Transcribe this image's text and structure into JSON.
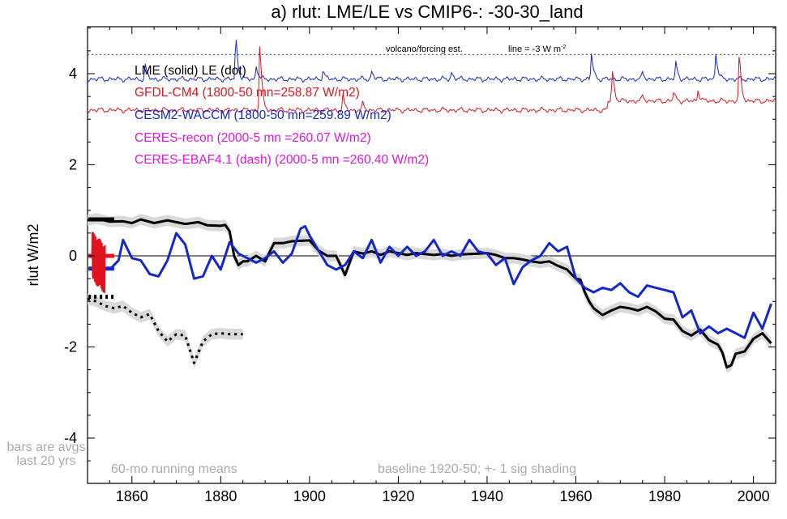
{
  "chart_data": {
    "type": "line",
    "title": "a) rlut: LME/LE vs CMIP6-: -30-30_land",
    "ylabel": "rlut W/m2",
    "xlabel": "",
    "xlim": [
      1850,
      2005
    ],
    "ylim": [
      -5,
      5.3
    ],
    "x_ticks": [
      1860,
      1880,
      1900,
      1920,
      1940,
      1960,
      1980,
      2000
    ],
    "y_ticks": [
      {
        "value": 4,
        "label": "4"
      },
      {
        "value": 2,
        "label": "2"
      },
      {
        "value": 0,
        "label": "0"
      },
      {
        "value": -2,
        "label": "-2"
      },
      {
        "value": -4,
        "label": "-4"
      }
    ],
    "zero_line": 0,
    "volcano_line_y": 4.42,
    "legend": [
      {
        "text": "LME (solid)   LE (dot)",
        "color": "#000000"
      },
      {
        "text": "GFDL-CM4 (1800-50 mn=258.87 W/m2)",
        "color": "#e0141e"
      },
      {
        "text": "CESM2-WACCM (1800-50 mn=259.89 W/m2)",
        "color": "#1428c8"
      },
      {
        "text": "CERES-recon (2000-5 mn =260.07 W/m2)",
        "color": "#e014e0"
      },
      {
        "text": "CERES-EBAF4.1 (dash) (2000-5 mn =260.40 W/m2)",
        "color": "#e014e0"
      }
    ],
    "annotations": {
      "volcano": "volcano/forcing est.",
      "line_note": "line = -3 W m",
      "line_note_sup": "-2",
      "bars_note": [
        "bars are avgs",
        "last 20 yrs"
      ],
      "running": "60-mo running means",
      "baseline": "baseline 1920-50; +- 1 sig shading"
    },
    "series": [
      {
        "name": "LME (solid)",
        "style": "solid",
        "color": "#000000",
        "shade_sigma": 0.12,
        "x": [
          1850,
          1852,
          1855,
          1858,
          1860,
          1862,
          1865,
          1868,
          1870,
          1872,
          1875,
          1877,
          1880,
          1881,
          1882,
          1883,
          1884,
          1885,
          1886,
          1888,
          1890,
          1892,
          1894,
          1896,
          1898,
          1900,
          1902,
          1904,
          1906,
          1908,
          1910,
          1912,
          1914,
          1916,
          1918,
          1920,
          1922,
          1924,
          1926,
          1928,
          1930,
          1932,
          1934,
          1936,
          1938,
          1940,
          1942,
          1944,
          1946,
          1948,
          1950,
          1952,
          1954,
          1956,
          1958,
          1960,
          1961,
          1962,
          1963,
          1964,
          1966,
          1968,
          1970,
          1972,
          1974,
          1976,
          1978,
          1980,
          1982,
          1984,
          1986,
          1988,
          1990,
          1992,
          1993,
          1994,
          1995,
          1996,
          1998,
          2000,
          2002,
          2004
        ],
        "y": [
          0.78,
          0.82,
          0.75,
          0.76,
          0.72,
          0.8,
          0.72,
          0.78,
          0.74,
          0.7,
          0.74,
          0.67,
          0.66,
          0.68,
          0.54,
          0.0,
          -0.2,
          -0.12,
          -0.12,
          0.0,
          -0.12,
          0.28,
          0.28,
          0.32,
          0.33,
          0.34,
          0.12,
          0.0,
          0.0,
          -0.42,
          0.1,
          0.05,
          0.1,
          0.02,
          0.1,
          0.06,
          0.02,
          0.06,
          0.04,
          0.02,
          0.04,
          0.0,
          0.03,
          0.04,
          0.05,
          0.06,
          0.02,
          -0.05,
          -0.05,
          -0.08,
          -0.12,
          -0.15,
          -0.12,
          -0.22,
          -0.3,
          -0.5,
          -0.52,
          -0.8,
          -1.0,
          -1.15,
          -1.3,
          -1.2,
          -1.12,
          -1.15,
          -1.2,
          -1.12,
          -1.22,
          -1.38,
          -1.4,
          -1.65,
          -1.75,
          -1.62,
          -1.85,
          -1.95,
          -2.12,
          -2.45,
          -2.4,
          -2.15,
          -2.1,
          -1.82,
          -1.7,
          -1.92
        ]
      },
      {
        "name": "LE (dot)",
        "style": "dotted",
        "color": "#000000",
        "shade_sigma": 0.12,
        "x": [
          1850,
          1852,
          1854,
          1856,
          1858,
          1860,
          1862,
          1864,
          1866,
          1868,
          1870,
          1872,
          1874,
          1876,
          1878,
          1880,
          1882,
          1885
        ],
        "y": [
          -0.95,
          -1.0,
          -1.1,
          -1.15,
          -1.1,
          -1.25,
          -1.35,
          -1.28,
          -1.65,
          -1.88,
          -1.72,
          -1.75,
          -2.35,
          -1.88,
          -1.72,
          -1.7,
          -1.72,
          -1.72
        ]
      },
      {
        "name": "CESM2-WACCM",
        "style": "solid",
        "color": "#1428c8",
        "x": [
          1855,
          1857,
          1858,
          1860,
          1862,
          1864,
          1866,
          1868,
          1870,
          1872,
          1874,
          1876,
          1878,
          1880,
          1882,
          1884,
          1886,
          1888,
          1890,
          1892,
          1894,
          1896,
          1898,
          1899,
          1900,
          1902,
          1904,
          1906,
          1908,
          1910,
          1912,
          1914,
          1916,
          1918,
          1920,
          1922,
          1924,
          1926,
          1928,
          1930,
          1932,
          1934,
          1936,
          1938,
          1940,
          1942,
          1944,
          1946,
          1948,
          1950,
          1952,
          1954,
          1956,
          1958,
          1960,
          1962,
          1964,
          1966,
          1968,
          1970,
          1972,
          1974,
          1976,
          1978,
          1980,
          1982,
          1984,
          1986,
          1988,
          1990,
          1992,
          1994,
          1996,
          1998,
          2000,
          2002,
          2004
        ],
        "y": [
          -0.3,
          -0.1,
          0.35,
          -0.05,
          -0.1,
          -0.4,
          -0.45,
          -0.1,
          0.5,
          0.25,
          -0.5,
          -0.45,
          0.0,
          -0.3,
          0.3,
          0.05,
          -0.05,
          -0.15,
          -0.05,
          0.1,
          -0.15,
          0.05,
          0.6,
          0.65,
          0.45,
          0.12,
          -0.2,
          -0.3,
          -0.2,
          0.1,
          -0.05,
          0.35,
          -0.15,
          0.2,
          0.0,
          0.2,
          0.0,
          0.1,
          0.35,
          0.0,
          0.1,
          0.0,
          0.35,
          0.1,
          0.05,
          -0.2,
          -0.05,
          -0.62,
          -0.25,
          -0.1,
          0.0,
          0.28,
          0.1,
          0.2,
          -0.5,
          -0.7,
          -0.8,
          -0.7,
          -0.75,
          -0.6,
          -0.8,
          -0.9,
          -0.65,
          -0.7,
          -0.75,
          -0.8,
          -1.35,
          -1.2,
          -1.7,
          -1.55,
          -1.7,
          -1.6,
          -1.7,
          -1.8,
          -1.25,
          -1.6,
          -1.05
        ]
      }
    ],
    "raw_series": [
      {
        "name": "CESM2-WACCM raw",
        "color": "#1428c8",
        "base": 3.88,
        "x_range": [
          1850,
          2005
        ],
        "spikes": [
          [
            1883.4,
            0.95
          ],
          [
            1863,
            0.3
          ],
          [
            1888,
            0.3
          ],
          [
            1903,
            0.2
          ],
          [
            1914,
            0.18
          ],
          [
            1932,
            0.15
          ],
          [
            1963.5,
            0.55
          ],
          [
            1982.5,
            0.35
          ],
          [
            1991.5,
            0.6
          ],
          [
            1975,
            0.15
          ]
        ]
      },
      {
        "name": "GFDL-CM4 raw",
        "color": "#e0141e",
        "base": 3.2,
        "base_late": 3.4,
        "step_year": 1967,
        "x_range": [
          1850,
          2005
        ],
        "spikes": [
          [
            1888.8,
            1.5
          ],
          [
            1907.5,
            0.3
          ],
          [
            1912,
            0.15
          ],
          [
            1968.2,
            0.7
          ],
          [
            1982,
            0.2
          ],
          [
            1987.5,
            0.25
          ],
          [
            1996.8,
            1.0
          ],
          [
            1975,
            0.12
          ]
        ]
      }
    ],
    "bars": [
      {
        "label": "LME",
        "color": "#000000",
        "style": "solid",
        "y": 0.8
      },
      {
        "label": "LE",
        "color": "#000000",
        "style": "dotted",
        "y": -0.9
      },
      {
        "label": "CESM2-WACCM",
        "color": "#1428c8",
        "style": "solid",
        "y": -0.28
      },
      {
        "label": "GFDL-CM4",
        "color": "#e0141e",
        "style": "solid",
        "y": 0.0
      }
    ]
  }
}
